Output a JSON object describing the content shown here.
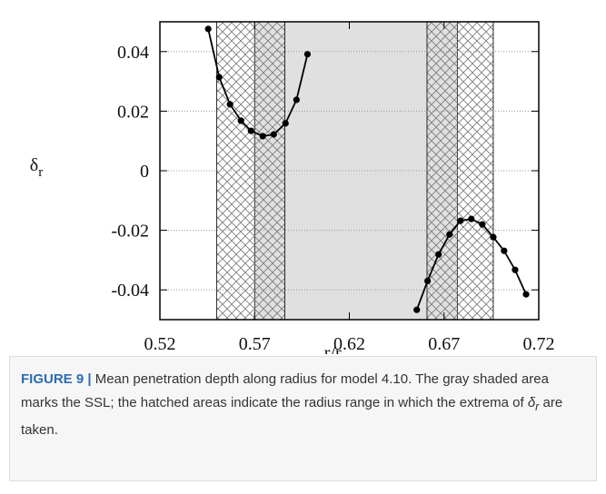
{
  "chart_data": {
    "type": "line",
    "xlabel": [
      "r/r",
      "o"
    ],
    "ylabel": [
      "δ",
      "r"
    ],
    "xlim": [
      0.52,
      0.72
    ],
    "xticks": [
      0.52,
      0.57,
      0.62,
      0.67,
      0.72
    ],
    "ylim": [
      -0.05,
      0.05
    ],
    "yticks": [
      0.04,
      0.02,
      0,
      -0.02,
      -0.04
    ],
    "grid": true,
    "shaded": [
      0.57,
      0.677
    ],
    "shaded_color": "#e0e0e0",
    "hatched": [
      [
        0.55,
        0.586
      ],
      [
        0.661,
        0.696
      ]
    ],
    "series": [
      {
        "color": "#000000",
        "x": [
          0.5455,
          0.5513,
          0.557,
          0.5628,
          0.5681,
          0.5743,
          0.5801,
          0.5863,
          0.5921,
          0.5979
        ],
        "values": [
          0.0476,
          0.0314,
          0.0223,
          0.0168,
          0.0134,
          0.0116,
          0.0122,
          0.0159,
          0.0238,
          0.0391
        ]
      },
      {
        "color": "#000000",
        "x": [
          0.6556,
          0.6613,
          0.6671,
          0.6729,
          0.6787,
          0.6844,
          0.6902,
          0.696,
          0.7017,
          0.7075,
          0.7133
        ],
        "values": [
          -0.0467,
          -0.037,
          -0.0281,
          -0.0214,
          -0.0168,
          -0.0162,
          -0.018,
          -0.0223,
          -0.0269,
          -0.0333,
          -0.0415
        ]
      }
    ]
  },
  "caption": {
    "label": "FIGURE 9 |",
    "text": "Mean penetration depth along radius for model 4.10. The gray shaded area marks the SSL; the hatched areas indicate the radius range in which the extrema of ",
    "symbol": "δ",
    "subscript": "r",
    "end": " are taken."
  }
}
